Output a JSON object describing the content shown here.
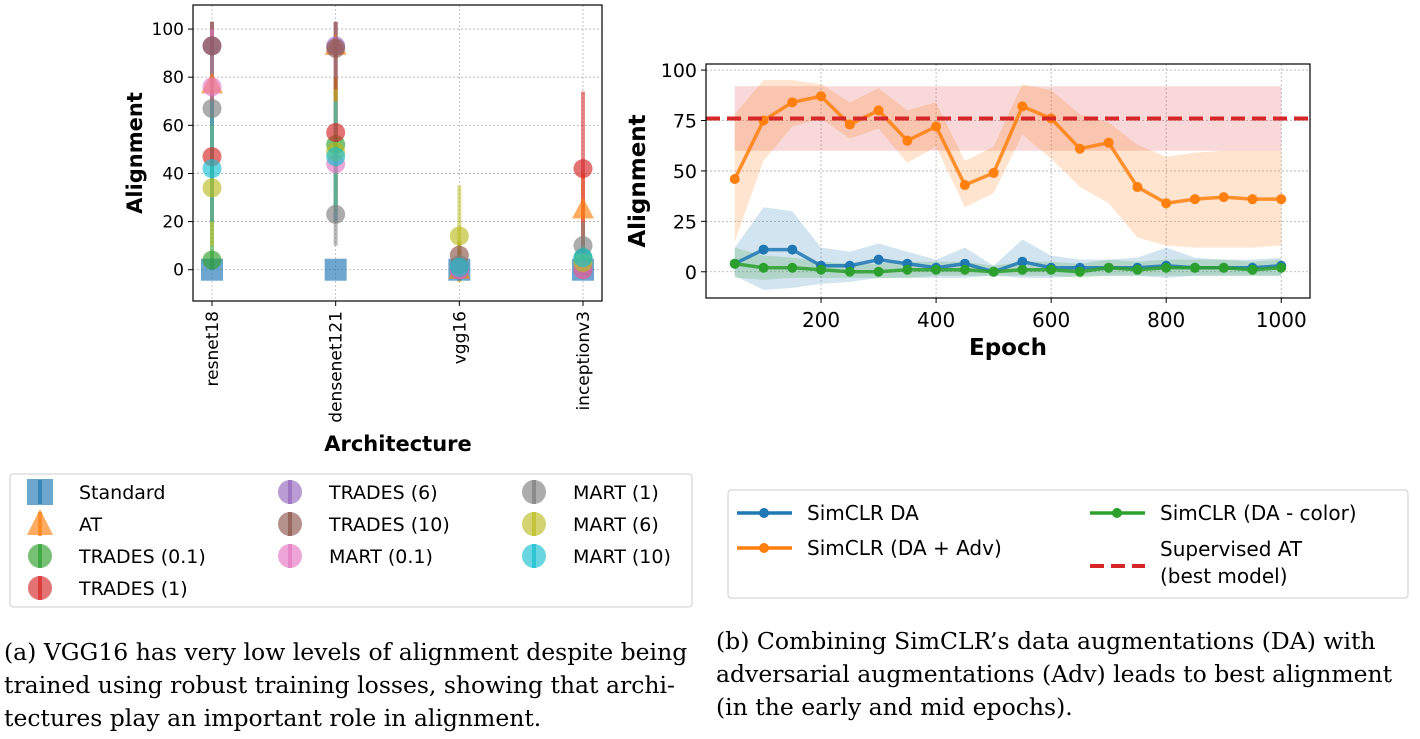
{
  "chart_data": [
    {
      "type": "scatter",
      "xlabel": "Architecture",
      "ylabel": "Alignment",
      "ylim": [
        -13,
        110
      ],
      "yticks": [
        0,
        20,
        40,
        60,
        80,
        100
      ],
      "grid": true,
      "categories": [
        "resnet18",
        "densenet121",
        "vgg16",
        "inceptionv3"
      ],
      "legend_position": "bottom",
      "series": [
        {
          "name": "Standard",
          "marker": "square",
          "color": "#1f77b4",
          "values": [
            0,
            0,
            0,
            0
          ],
          "err": [
            [
              0,
              0
            ],
            [
              0,
              0
            ],
            [
              0,
              0
            ],
            [
              0,
              0
            ]
          ]
        },
        {
          "name": "AT",
          "marker": "triangle",
          "color": "#ff7f0e",
          "values": [
            77,
            93,
            0,
            25
          ],
          "err": [
            [
              45,
              103
            ],
            [
              20,
              103
            ],
            [
              -5,
              5
            ],
            [
              10,
              40
            ]
          ]
        },
        {
          "name": "TRADES (0.1)",
          "marker": "circle",
          "color": "#2ca02c",
          "values": [
            4,
            52,
            0,
            5
          ],
          "err": [
            [
              0,
              70
            ],
            [
              25,
              80
            ],
            [
              -3,
              4
            ],
            [
              0,
              10
            ]
          ]
        },
        {
          "name": "TRADES (1)",
          "marker": "circle",
          "color": "#d62728",
          "values": [
            47,
            57,
            0,
            42
          ],
          "err": [
            [
              20,
              75
            ],
            [
              30,
              80
            ],
            [
              -3,
              4
            ],
            [
              5,
              74
            ]
          ]
        },
        {
          "name": "TRADES (6)",
          "marker": "circle",
          "color": "#9467bd",
          "values": [
            93,
            93,
            0,
            0
          ],
          "err": [
            [
              80,
              103
            ],
            [
              80,
              103
            ],
            [
              -3,
              4
            ],
            [
              -3,
              5
            ]
          ]
        },
        {
          "name": "TRADES (10)",
          "marker": "circle",
          "color": "#8c564b",
          "values": [
            93,
            92,
            6,
            0
          ],
          "err": [
            [
              80,
              103
            ],
            [
              80,
              103
            ],
            [
              0,
              12
            ],
            [
              -3,
              5
            ]
          ]
        },
        {
          "name": "MART (0.1)",
          "marker": "circle",
          "color": "#e377c2",
          "values": [
            76,
            44,
            0,
            0
          ],
          "err": [
            [
              50,
              100
            ],
            [
              20,
              70
            ],
            [
              -3,
              4
            ],
            [
              -3,
              5
            ]
          ]
        },
        {
          "name": "MART (1)",
          "marker": "circle",
          "color": "#7f7f7f",
          "values": [
            67,
            23,
            2,
            10
          ],
          "err": [
            [
              40,
              95
            ],
            [
              10,
              40
            ],
            [
              -3,
              8
            ],
            [
              0,
              20
            ]
          ]
        },
        {
          "name": "MART (6)",
          "marker": "circle",
          "color": "#bcbd22",
          "values": [
            34,
            49,
            14,
            3
          ],
          "err": [
            [
              10,
              60
            ],
            [
              25,
              75
            ],
            [
              -5,
              35
            ],
            [
              -3,
              10
            ]
          ]
        },
        {
          "name": "MART (10)",
          "marker": "circle",
          "color": "#17becf",
          "values": [
            42,
            47,
            1,
            5
          ],
          "err": [
            [
              20,
              70
            ],
            [
              20,
              70
            ],
            [
              -3,
              5
            ],
            [
              0,
              10
            ]
          ]
        }
      ]
    },
    {
      "type": "line",
      "xlabel": "Epoch",
      "ylabel": "Alignment",
      "xlim": [
        0,
        1050
      ],
      "ylim": [
        -13,
        103
      ],
      "xticks": [
        200,
        400,
        600,
        800,
        1000
      ],
      "yticks": [
        0,
        25,
        50,
        75,
        100
      ],
      "grid": true,
      "legend_position": "bottom",
      "x": [
        50,
        100,
        150,
        200,
        250,
        300,
        350,
        400,
        450,
        500,
        550,
        600,
        650,
        700,
        750,
        800,
        850,
        900,
        950,
        1000
      ],
      "series": [
        {
          "name": "SimCLR DA",
          "color": "#1f77b4",
          "values": [
            4,
            11,
            11,
            3,
            3,
            6,
            4,
            2,
            4,
            0,
            5,
            2,
            2,
            2,
            2,
            3,
            2,
            2,
            2,
            3
          ],
          "band_low": [
            -2,
            -9,
            -8,
            -6,
            -5,
            -3,
            -3,
            -3,
            -3,
            -2,
            -3,
            -3,
            -2,
            -2,
            -2,
            -3,
            -2,
            -2,
            -2,
            -2
          ],
          "band_high": [
            12,
            32,
            30,
            12,
            10,
            14,
            10,
            6,
            12,
            3,
            16,
            8,
            6,
            6,
            7,
            12,
            7,
            6,
            6,
            7
          ]
        },
        {
          "name": "SimCLR (DA + Adv)",
          "color": "#ff7f0e",
          "values": [
            46,
            75,
            84,
            87,
            73,
            80,
            65,
            72,
            43,
            49,
            82,
            76,
            61,
            64,
            42,
            34,
            36,
            37,
            36,
            36
          ],
          "band_low": [
            15,
            55,
            72,
            76,
            66,
            71,
            54,
            62,
            32,
            39,
            68,
            56,
            42,
            34,
            17,
            13,
            12,
            12,
            12,
            13
          ],
          "band_high": [
            78,
            95,
            95,
            93,
            84,
            91,
            80,
            84,
            55,
            62,
            93,
            90,
            78,
            74,
            63,
            57,
            59,
            60,
            60,
            60
          ]
        },
        {
          "name": "SimCLR (DA - color)",
          "color": "#2ca02c",
          "values": [
            4,
            2,
            2,
            1,
            0,
            0,
            1,
            1,
            1,
            0,
            1,
            1,
            0,
            2,
            1,
            2,
            2,
            2,
            1,
            2
          ],
          "band_low": [
            -3,
            -4,
            -3,
            -3,
            -3,
            -3,
            -3,
            -2,
            -2,
            -2,
            -2,
            -2,
            -3,
            -2,
            -2,
            -2,
            -2,
            -2,
            -2,
            -2
          ],
          "band_high": [
            12,
            8,
            7,
            5,
            4,
            4,
            5,
            5,
            5,
            3,
            5,
            5,
            4,
            6,
            5,
            6,
            6,
            6,
            5,
            6
          ]
        }
      ],
      "reference": {
        "name_line1": "Supervised AT",
        "name_line2": "(best model)",
        "value": 76,
        "band": [
          60,
          92
        ],
        "color": "#d62728"
      }
    }
  ],
  "captions": {
    "a": [
      "(a) VGG16 has very low levels of alignment despite being",
      "trained using robust training losses, showing that archi-",
      "tectures play an important role in alignment."
    ],
    "b": [
      "(b) Combining SimCLR’s data augmentations (DA) with",
      "adversarial augmentations (Adv) leads to best alignment",
      "(in the early and mid epochs)."
    ]
  }
}
